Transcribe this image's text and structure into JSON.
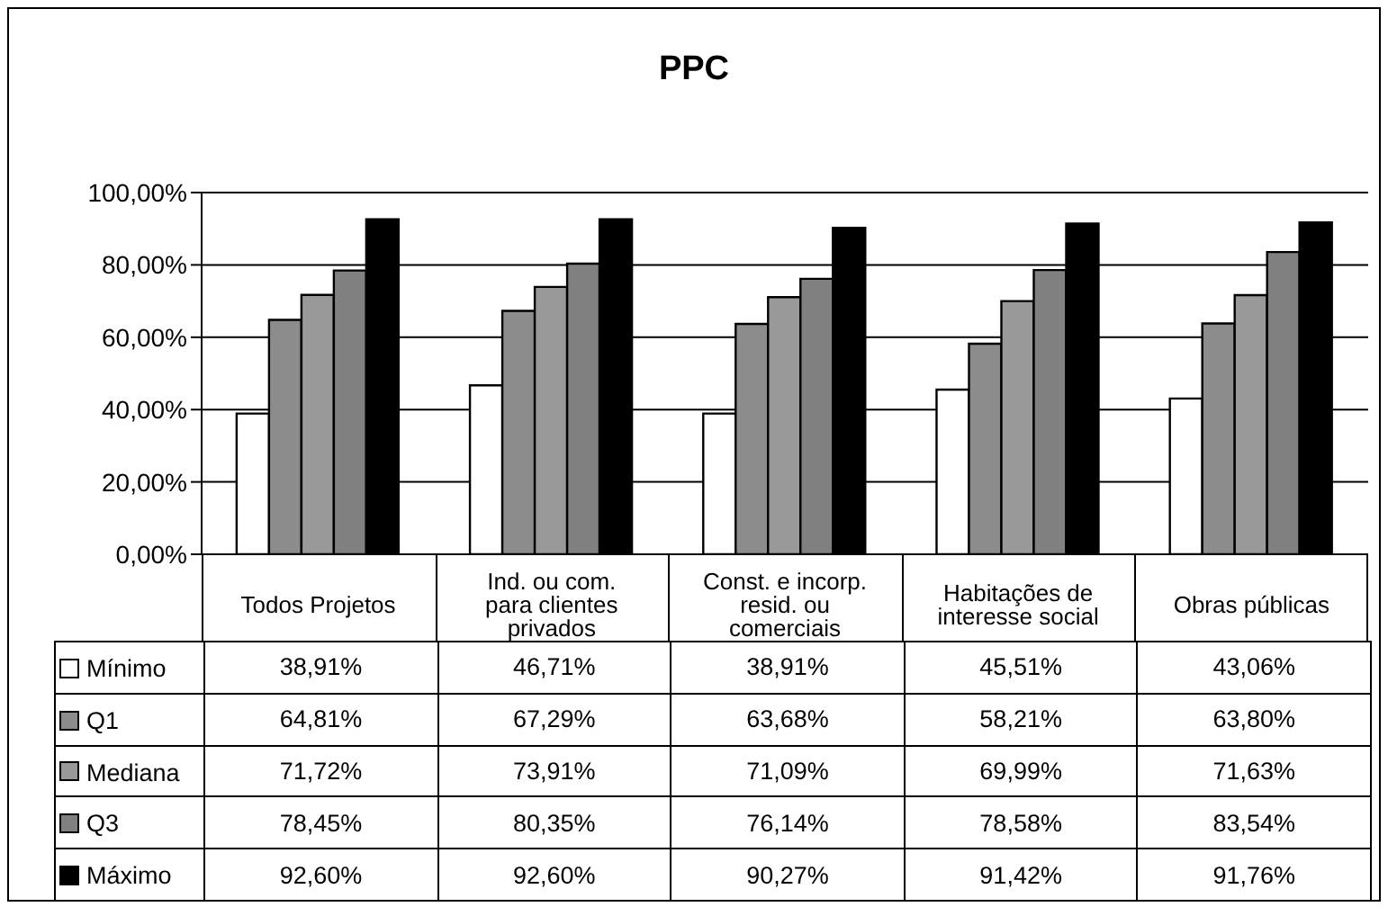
{
  "chart_data": {
    "type": "bar",
    "title": "PPC",
    "categories": [
      "Todos Projetos",
      "Ind. ou com. para clientes privados",
      "Const. e incorp. resid. ou comerciais",
      "Habitações de interesse social",
      "Obras públicas"
    ],
    "series": [
      {
        "name": "Mínimo",
        "color": "#ffffff",
        "values": [
          38.91,
          46.71,
          38.91,
          45.51,
          43.06
        ],
        "value_labels": [
          "38,91%",
          "46,71%",
          "38,91%",
          "45,51%",
          "43,06%"
        ]
      },
      {
        "name": "Q1",
        "color": "#8c8c8c",
        "values": [
          64.81,
          67.29,
          63.68,
          58.21,
          63.8
        ],
        "value_labels": [
          "64,81%",
          "67,29%",
          "63,68%",
          "58,21%",
          "63,80%"
        ]
      },
      {
        "name": "Mediana",
        "color": "#999999",
        "values": [
          71.72,
          73.91,
          71.09,
          69.99,
          71.63
        ],
        "value_labels": [
          "71,72%",
          "73,91%",
          "71,09%",
          "69,99%",
          "71,63%"
        ]
      },
      {
        "name": "Q3",
        "color": "#808080",
        "values": [
          78.45,
          80.35,
          76.14,
          78.58,
          83.54
        ],
        "value_labels": [
          "78,45%",
          "80,35%",
          "76,14%",
          "78,58%",
          "83,54%"
        ]
      },
      {
        "name": "Máximo",
        "color": "#000000",
        "values": [
          92.6,
          92.6,
          90.27,
          91.42,
          91.76
        ],
        "value_labels": [
          "92,60%",
          "92,60%",
          "90,27%",
          "91,42%",
          "91,76%"
        ]
      }
    ],
    "ylim": [
      0,
      100
    ],
    "yticks": [
      {
        "value": 0,
        "label": "0,00%"
      },
      {
        "value": 20,
        "label": "20,00%"
      },
      {
        "value": 40,
        "label": "40,00%"
      },
      {
        "value": 60,
        "label": "60,00%"
      },
      {
        "value": 80,
        "label": "80,00%"
      },
      {
        "value": 100,
        "label": "100,00%"
      }
    ],
    "grid": "y",
    "legend": "bottom left"
  }
}
